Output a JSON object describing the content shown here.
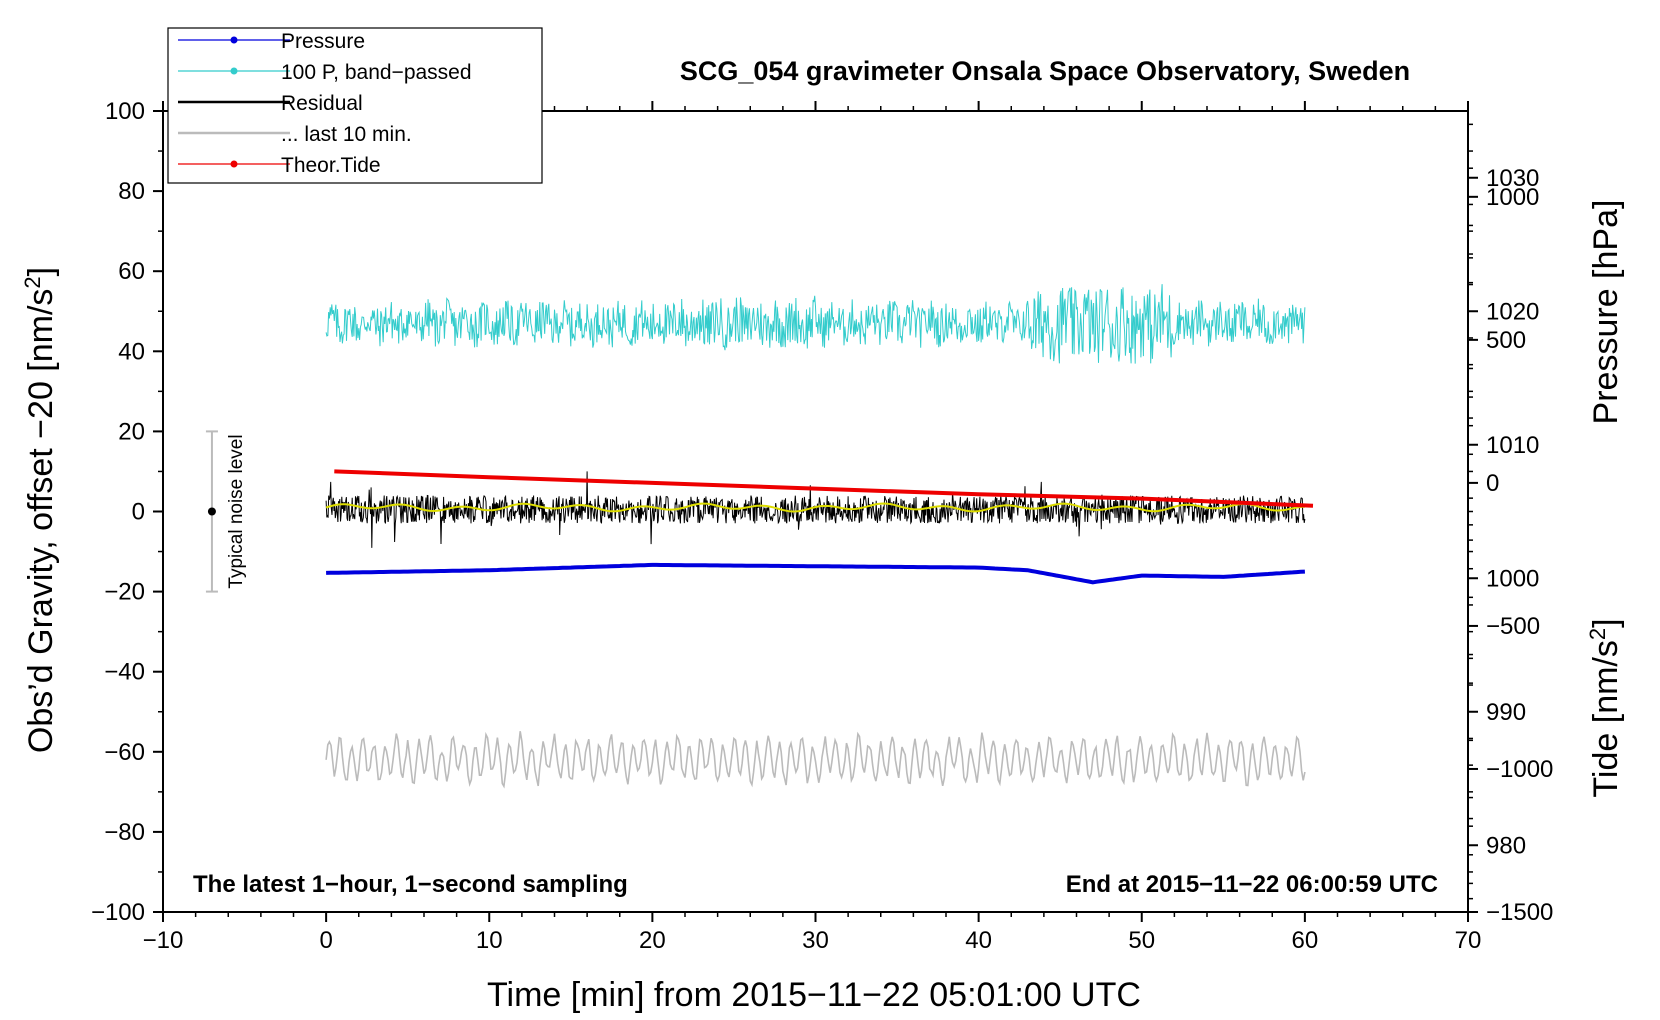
{
  "chart_data": {
    "type": "line",
    "title": "SCG_054 gravimeter Onsala Space Observatory, Sweden",
    "xlabel": "Time [min] from 2015−11−22 05:01:00 UTC",
    "ylabel_prefix": "Obs’d Gravity, offset −20 [nm/s",
    "ylabel_sup": "2",
    "ylabel_suffix": "]",
    "y2label": "Pressure [hPa]",
    "y3label_prefix": "Tide [nm/s",
    "y3label_sup": "2",
    "y3label_suffix": "]",
    "xlim": [
      -10,
      70
    ],
    "ylim": [
      -100,
      100
    ],
    "x_ticks": [
      "−10",
      "0",
      "10",
      "20",
      "30",
      "40",
      "50",
      "60",
      "70"
    ],
    "y_ticks": [
      "100",
      "80",
      "60",
      "40",
      "20",
      "0",
      "−20",
      "−40",
      "−60",
      "−80",
      "−100"
    ],
    "pressure_axis": {
      "range": [
        975,
        1035
      ],
      "ticks": [
        "1030",
        "1020",
        "1010",
        "1000",
        "990",
        "980"
      ]
    },
    "tide_axis": {
      "range": [
        -1500,
        1300
      ],
      "ticks": [
        "1000",
        "500",
        "0",
        "−500",
        "−1000",
        "−1500"
      ]
    },
    "annotations": {
      "left": "The latest 1−hour, 1−second sampling",
      "right": "End at 2015−11−22 06:00:59 UTC"
    },
    "noise_bar": {
      "label": "Typical noise level",
      "x": -7,
      "center": 0,
      "half_range": 20
    },
    "legend": [
      {
        "name": "Pressure",
        "color": "#0000dd"
      },
      {
        "name": "100 P, band−passed",
        "color": "#33cccc"
      },
      {
        "name": "Residual",
        "color": "#000000"
      },
      {
        "name": "... last 10 min.",
        "color": "#bbbbbb"
      },
      {
        "name": "Theor.Tide",
        "color": "#ee0000"
      }
    ],
    "series": [
      {
        "name": "Pressure",
        "axis": "pressure",
        "x": [
          0,
          10,
          20,
          30,
          40,
          43,
          47,
          50,
          55,
          60
        ],
        "values": [
          1000.4,
          1000.6,
          1001.0,
          1000.9,
          1000.8,
          1000.6,
          999.7,
          1000.2,
          1000.1,
          1000.5
        ]
      },
      {
        "name": "100 P, band−passed",
        "axis": "gravity",
        "center": 47,
        "amplitude": 5,
        "note": "high-frequency band-passed pressure around 47 nm/s²"
      },
      {
        "name": "Residual",
        "axis": "gravity",
        "center": 0.5,
        "amplitude": 3.5,
        "note": "1-second residual noise around 0 nm/s²"
      },
      {
        "name": "... last 10 min.",
        "axis": "gravity",
        "center": -62,
        "amplitude": 5
      },
      {
        "name": "Theor.Tide",
        "axis": "tide",
        "x": [
          0.5,
          10,
          20,
          30,
          40,
          50,
          60.5
        ],
        "values": [
          40,
          20,
          0,
          -20,
          -40,
          -55,
          -80
        ]
      }
    ]
  }
}
